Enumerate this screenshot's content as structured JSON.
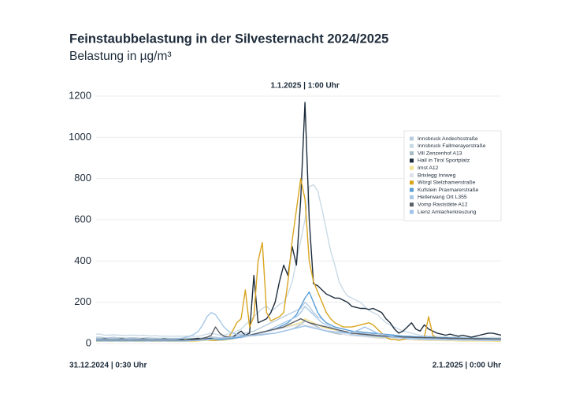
{
  "chart_data": {
    "type": "line",
    "title": "Feinstaubbelastung in der Silvesternacht 2024/2025",
    "subtitle": "Belastung in µg/m³",
    "categories": [
      "31.12.2024 | 0:30 Uhr",
      null,
      null,
      null,
      null,
      null,
      null,
      null,
      null,
      null,
      null,
      null,
      null,
      null,
      null,
      null,
      null,
      null,
      null,
      null,
      null,
      null,
      null,
      null,
      null,
      null,
      null,
      null,
      null,
      null,
      null,
      null,
      null,
      null,
      null,
      null,
      null,
      null,
      null,
      null,
      null,
      null,
      null,
      null,
      null,
      null,
      null,
      null,
      null,
      "1.1.2025 | 1:00 Uhr",
      null,
      null,
      null,
      null,
      null,
      null,
      null,
      null,
      null,
      null,
      null,
      null,
      null,
      null,
      null,
      null,
      null,
      null,
      null,
      null,
      null,
      null,
      null,
      null,
      null,
      null,
      null,
      null,
      null,
      null,
      null,
      null,
      null,
      null,
      null,
      null,
      null,
      null,
      null,
      null,
      null,
      null,
      null,
      null,
      null,
      "2.1.2025 | 0:00 Uhr"
    ],
    "ylim": [
      0,
      1200
    ],
    "yticks": [
      0,
      200,
      400,
      600,
      800,
      1000,
      1200
    ],
    "grid": true,
    "legend": "upper right",
    "series": [
      {
        "name": "Innsbruck Andechsstraße",
        "color": "#b8cce0",
        "values": [
          30,
          30,
          28,
          28,
          30,
          28,
          28,
          26,
          28,
          28,
          26,
          26,
          28,
          26,
          26,
          25,
          26,
          25,
          25,
          25,
          25,
          25,
          26,
          25,
          25,
          28,
          30,
          32,
          30,
          28,
          30,
          32,
          35,
          40,
          45,
          50,
          55,
          60,
          70,
          80,
          90,
          100,
          110,
          120,
          130,
          140,
          150,
          160,
          170,
          200,
          180,
          150,
          130,
          120,
          100,
          90,
          80,
          75,
          70,
          65,
          60,
          55,
          50,
          50,
          45,
          45,
          40,
          40,
          38,
          36,
          35,
          34,
          33,
          32,
          30,
          30,
          30,
          28,
          28,
          28,
          27,
          27,
          26,
          26,
          25,
          25,
          25,
          24,
          24,
          24,
          24,
          24,
          23,
          23,
          22,
          22
        ]
      },
      {
        "name": "Innsbruck Fallmerayerstraße",
        "color": "#c9dae5",
        "values": [
          45,
          45,
          40,
          40,
          42,
          40,
          40,
          38,
          40,
          40,
          38,
          40,
          38,
          36,
          38,
          35,
          36,
          35,
          35,
          36,
          35,
          35,
          36,
          35,
          35,
          40,
          45,
          50,
          45,
          40,
          40,
          45,
          50,
          60,
          70,
          90,
          110,
          130,
          150,
          170,
          180,
          160,
          170,
          190,
          200,
          240,
          300,
          400,
          500,
          600,
          760,
          770,
          740,
          650,
          550,
          450,
          380,
          300,
          260,
          230,
          220,
          210,
          200,
          180,
          160,
          150,
          140,
          120,
          100,
          90,
          80,
          70,
          60,
          55,
          50,
          45,
          40,
          38,
          35,
          35,
          35,
          33,
          32,
          30,
          32,
          30,
          30,
          28,
          30,
          30,
          28,
          30,
          28,
          30,
          28,
          30
        ]
      },
      {
        "name": "Vill Zenzenhof A13",
        "color": "#a9bcc5",
        "values": [
          25,
          25,
          24,
          24,
          25,
          24,
          24,
          23,
          24,
          24,
          23,
          23,
          24,
          23,
          23,
          22,
          23,
          22,
          22,
          23,
          22,
          22,
          23,
          22,
          22,
          24,
          25,
          26,
          25,
          24,
          25,
          26,
          28,
          30,
          32,
          34,
          36,
          38,
          40,
          42,
          45,
          48,
          50,
          55,
          60,
          65,
          70,
          80,
          90,
          110,
          100,
          90,
          80,
          70,
          60,
          55,
          50,
          45,
          45,
          40,
          40,
          38,
          36,
          35,
          34,
          33,
          32,
          31,
          30,
          30,
          29,
          28,
          28,
          27,
          27,
          26,
          26,
          25,
          25,
          25,
          24,
          24,
          24,
          23,
          23,
          23,
          22,
          22,
          22,
          22,
          21,
          21,
          21,
          20,
          20,
          20
        ]
      },
      {
        "name": "Hall in Tirol Sportplatz",
        "color": "#1d2d3d",
        "values": [
          20,
          20,
          22,
          20,
          18,
          20,
          22,
          20,
          18,
          20,
          20,
          22,
          20,
          18,
          20,
          20,
          22,
          20,
          20,
          22,
          20,
          18,
          20,
          22,
          25,
          20,
          22,
          25,
          20,
          18,
          20,
          25,
          30,
          45,
          60,
          40,
          50,
          330,
          100,
          110,
          120,
          150,
          200,
          300,
          380,
          330,
          470,
          380,
          700,
          1170,
          600,
          290,
          280,
          260,
          240,
          230,
          220,
          220,
          210,
          200,
          180,
          175,
          170,
          170,
          165,
          170,
          160,
          150,
          120,
          100,
          70,
          50,
          60,
          80,
          100,
          70,
          60,
          90,
          70,
          60,
          50,
          45,
          40,
          45,
          40,
          35,
          40,
          35,
          30,
          35,
          40,
          45,
          50,
          50,
          45,
          40
        ]
      },
      {
        "name": "Imst A12",
        "color": "#f3e28f",
        "values": [
          10,
          10,
          12,
          10,
          10,
          12,
          10,
          10,
          12,
          10,
          10,
          10,
          12,
          10,
          10,
          10,
          12,
          10,
          10,
          10,
          10,
          12,
          10,
          10,
          12,
          14,
          15,
          18,
          15,
          14,
          15,
          18,
          20,
          25,
          30,
          35,
          40,
          45,
          50,
          55,
          60,
          65,
          70,
          75,
          80,
          85,
          90,
          95,
          100,
          120,
          110,
          100,
          90,
          80,
          75,
          70,
          65,
          60,
          55,
          50,
          45,
          40,
          38,
          35,
          33,
          30,
          28,
          26,
          25,
          24,
          22,
          20,
          20,
          18,
          18,
          16,
          16,
          15,
          15,
          14,
          14,
          14,
          13,
          13,
          13,
          12,
          12,
          12,
          12,
          12,
          12,
          11,
          11,
          11,
          10,
          10
        ]
      },
      {
        "name": "Brixlegg Innweg",
        "color": "#dfe1ea",
        "values": [
          18,
          18,
          17,
          17,
          18,
          17,
          17,
          16,
          17,
          17,
          16,
          16,
          17,
          16,
          16,
          15,
          16,
          15,
          15,
          16,
          15,
          15,
          16,
          15,
          15,
          17,
          18,
          20,
          18,
          17,
          18,
          20,
          22,
          25,
          28,
          30,
          35,
          40,
          45,
          50,
          55,
          60,
          65,
          70,
          75,
          80,
          85,
          90,
          95,
          90,
          85,
          80,
          75,
          70,
          65,
          60,
          55,
          50,
          45,
          40,
          38,
          36,
          34,
          32,
          30,
          28,
          26,
          25,
          24,
          23,
          22,
          21,
          20,
          20,
          19,
          19,
          18,
          18,
          18,
          17,
          17,
          17,
          16,
          16,
          16,
          15,
          15,
          15,
          15,
          15,
          14,
          14,
          14,
          14,
          14,
          14
        ]
      },
      {
        "name": "Wörgl Stelzhamerstraße",
        "color": "#d9a520",
        "values": [
          15,
          15,
          18,
          15,
          15,
          18,
          15,
          15,
          18,
          15,
          15,
          15,
          18,
          15,
          15,
          15,
          18,
          15,
          15,
          15,
          15,
          18,
          15,
          15,
          18,
          20,
          18,
          15,
          15,
          18,
          20,
          25,
          60,
          100,
          120,
          260,
          80,
          130,
          400,
          490,
          150,
          110,
          120,
          130,
          150,
          300,
          500,
          650,
          800,
          700,
          400,
          300,
          250,
          200,
          150,
          120,
          100,
          90,
          80,
          80,
          80,
          85,
          90,
          95,
          100,
          90,
          70,
          50,
          30,
          20,
          20,
          15,
          20,
          25,
          30,
          25,
          20,
          30,
          130,
          40,
          25,
          20,
          20,
          18,
          20,
          20,
          18,
          20,
          18,
          20,
          20,
          18,
          20,
          20,
          18,
          20
        ]
      },
      {
        "name": "Kufstein Praxmarerstraße",
        "color": "#5b9fd8",
        "values": [
          20,
          20,
          18,
          18,
          20,
          18,
          18,
          17,
          18,
          18,
          17,
          17,
          18,
          17,
          17,
          16,
          17,
          16,
          16,
          17,
          16,
          16,
          17,
          16,
          16,
          18,
          20,
          22,
          20,
          18,
          20,
          22,
          25,
          28,
          30,
          35,
          40,
          45,
          50,
          55,
          60,
          65,
          70,
          80,
          90,
          100,
          120,
          140,
          180,
          220,
          250,
          200,
          150,
          120,
          100,
          90,
          80,
          75,
          70,
          65,
          60,
          58,
          56,
          54,
          52,
          50,
          48,
          46,
          44,
          42,
          40,
          38,
          36,
          35,
          34,
          33,
          32,
          31,
          30,
          30,
          29,
          28,
          28,
          27,
          27,
          26,
          26,
          25,
          25,
          25,
          24,
          24,
          24,
          23,
          23,
          23
        ]
      },
      {
        "name": "Heiterwang Ort L355",
        "color": "#a7c8e8",
        "values": [
          20,
          20,
          20,
          20,
          20,
          20,
          20,
          20,
          20,
          20,
          20,
          20,
          20,
          20,
          20,
          20,
          20,
          20,
          20,
          22,
          25,
          30,
          35,
          45,
          60,
          90,
          130,
          150,
          140,
          110,
          80,
          60,
          50,
          45,
          40,
          40,
          40,
          45,
          50,
          55,
          60,
          70,
          80,
          90,
          100,
          110,
          120,
          130,
          150,
          180,
          160,
          140,
          120,
          100,
          90,
          80,
          70,
          60,
          55,
          50,
          45,
          40,
          40,
          38,
          36,
          35,
          34,
          33,
          32,
          31,
          30,
          30,
          29,
          28,
          28,
          27,
          27,
          26,
          26,
          25,
          25,
          25,
          24,
          24,
          24,
          23,
          23,
          23,
          22,
          22,
          22,
          22,
          21,
          21,
          21,
          21
        ]
      },
      {
        "name": "Vomp Raststätte A12",
        "color": "#5a5e66",
        "values": [
          15,
          15,
          15,
          15,
          15,
          15,
          15,
          15,
          15,
          15,
          15,
          15,
          15,
          15,
          15,
          15,
          15,
          15,
          15,
          15,
          15,
          15,
          16,
          18,
          20,
          25,
          30,
          40,
          80,
          50,
          35,
          30,
          30,
          32,
          35,
          38,
          40,
          45,
          50,
          55,
          60,
          65,
          70,
          75,
          80,
          90,
          100,
          110,
          120,
          110,
          100,
          95,
          90,
          85,
          80,
          75,
          70,
          65,
          60,
          55,
          50,
          48,
          46,
          44,
          42,
          40,
          38,
          36,
          35,
          34,
          33,
          32,
          31,
          30,
          30,
          29,
          29,
          28,
          28,
          27,
          27,
          26,
          26,
          25,
          25,
          25,
          24,
          24,
          24,
          23,
          23,
          23,
          22,
          22,
          22,
          22
        ]
      },
      {
        "name": "Lienz Amlacherkreuzung",
        "color": "#9ec2ea",
        "values": [
          12,
          12,
          12,
          12,
          12,
          12,
          12,
          12,
          12,
          12,
          12,
          12,
          12,
          12,
          12,
          12,
          12,
          12,
          12,
          12,
          12,
          12,
          13,
          14,
          15,
          16,
          18,
          20,
          22,
          24,
          26,
          28,
          30,
          32,
          34,
          36,
          38,
          40,
          42,
          44,
          46,
          48,
          50,
          55,
          60,
          65,
          70,
          75,
          80,
          85,
          80,
          75,
          70,
          65,
          60,
          58,
          56,
          54,
          52,
          50,
          55,
          60,
          70,
          80,
          70,
          60,
          50,
          45,
          40,
          35,
          30,
          28,
          26,
          25,
          24,
          23,
          22,
          21,
          20,
          20,
          20,
          19,
          19,
          18,
          18,
          18,
          17,
          17,
          17,
          16,
          16,
          16,
          16,
          15,
          15,
          15
        ]
      }
    ]
  }
}
